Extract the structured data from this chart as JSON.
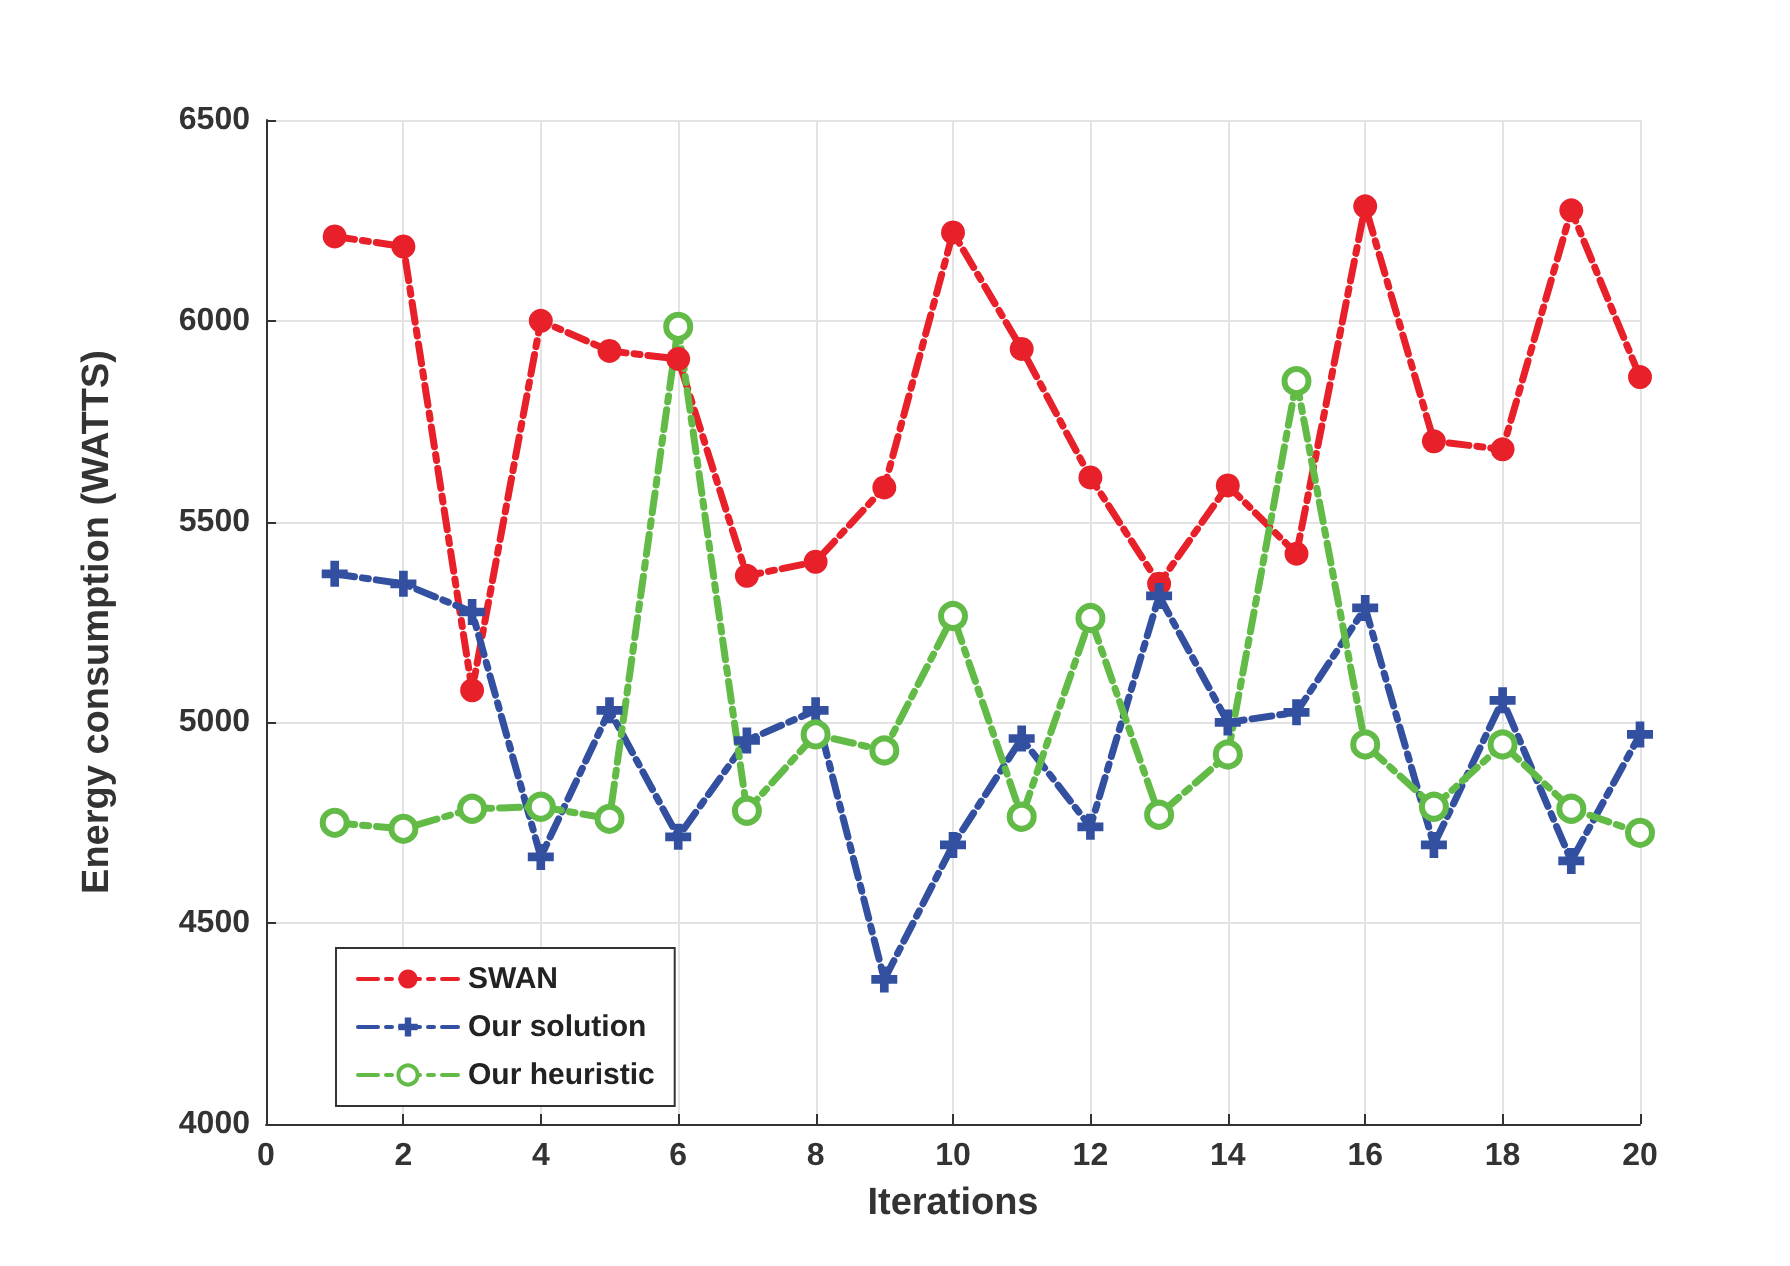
{
  "chart_data": {
    "type": "line",
    "xlabel": "Iterations",
    "ylabel": "Energy consumption (WATTS)",
    "x": [
      1,
      2,
      3,
      4,
      5,
      6,
      7,
      8,
      9,
      10,
      11,
      12,
      13,
      14,
      15,
      16,
      17,
      18,
      19,
      20
    ],
    "xlim": [
      0,
      20
    ],
    "xticks": [
      0,
      2,
      4,
      6,
      8,
      10,
      12,
      14,
      16,
      18,
      20
    ],
    "ylim": [
      4000,
      6500
    ],
    "yticks": [
      4000,
      4500,
      5000,
      5500,
      6000,
      6500
    ],
    "grid": true,
    "legend": "bottom left",
    "line_style": "dashed",
    "series": [
      {
        "name": "SWAN",
        "color": "#e8202a",
        "marker": "circle",
        "values": [
          6210,
          6185,
          5080,
          6000,
          5925,
          5905,
          5365,
          5400,
          5585,
          6220,
          5930,
          5610,
          5345,
          5590,
          5420,
          6285,
          5700,
          5680,
          6275,
          5860
        ]
      },
      {
        "name": "Our solution",
        "color": "#3350a0",
        "marker": "cross",
        "values": [
          5370,
          5345,
          5275,
          4665,
          5030,
          4715,
          4955,
          5030,
          4360,
          4695,
          4960,
          4740,
          5315,
          5000,
          5025,
          5285,
          4695,
          5055,
          4655,
          4970
        ]
      },
      {
        "name": "Our heuristic",
        "color": "#62bb46",
        "marker": "circle",
        "values": [
          4750,
          4735,
          4785,
          4790,
          4760,
          5985,
          4780,
          4970,
          4930,
          5265,
          4765,
          5260,
          4770,
          4920,
          5850,
          4945,
          4790,
          4945,
          4785,
          4725
        ]
      }
    ]
  }
}
